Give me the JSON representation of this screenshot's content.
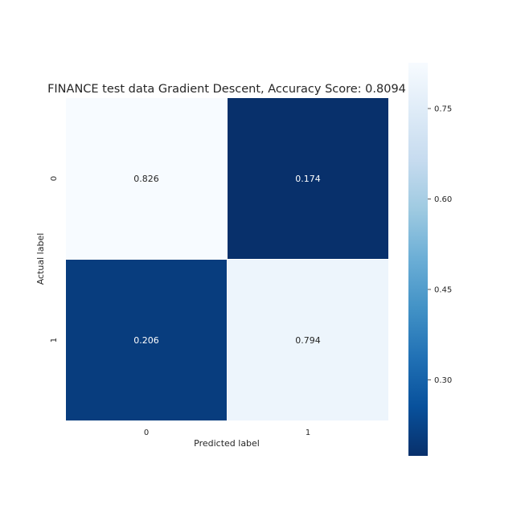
{
  "chart_data": {
    "type": "heatmap",
    "title": "FINANCE test data Gradient Descent, Accuracy Score: 0.8094",
    "xlabel": "Predicted label",
    "ylabel": "Actual label",
    "x_categories": [
      "0",
      "1"
    ],
    "y_categories": [
      "0",
      "1"
    ],
    "values": [
      [
        0.826,
        0.174
      ],
      [
        0.206,
        0.794
      ]
    ],
    "value_labels": [
      [
        "0.826",
        "0.174"
      ],
      [
        "0.206",
        "0.794"
      ]
    ],
    "colormap": "Blues_r",
    "colorbar": {
      "range": [
        0.174,
        0.826
      ],
      "ticks": [
        0.3,
        0.45,
        0.6,
        0.75
      ],
      "tick_labels": [
        "0.30",
        "0.45",
        "0.60",
        "0.75"
      ]
    },
    "grid": false,
    "colors": {
      "dark": "#08306b",
      "light": "#f7fbff",
      "text_dark_cell": "#ffffff",
      "text_light_cell": "#262626"
    }
  }
}
